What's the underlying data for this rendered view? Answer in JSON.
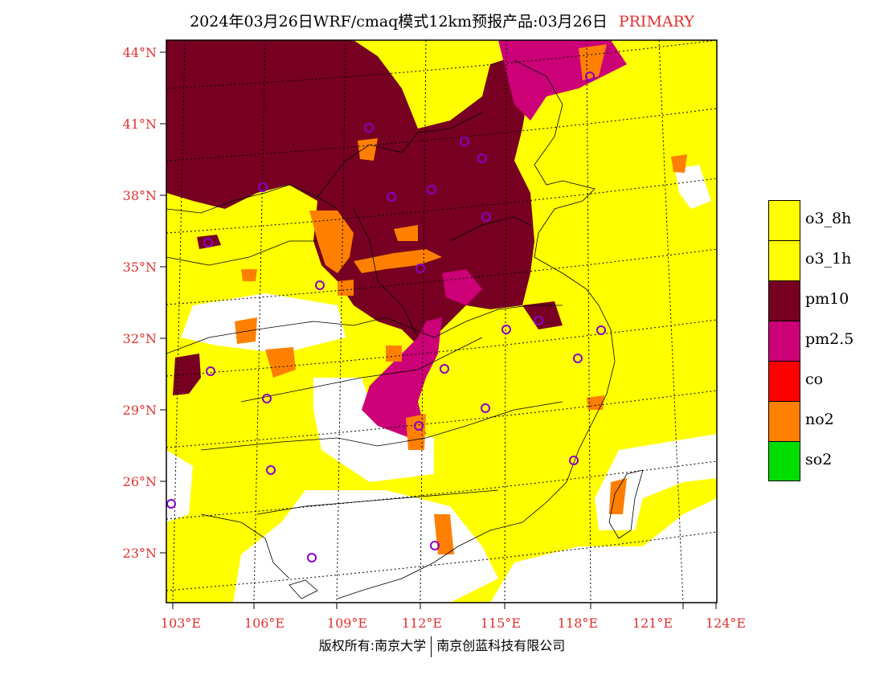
{
  "header": {
    "title": "2024年03月26日WRF/cmaq模式12km预报产品:03月26日",
    "tag": "PRIMARY"
  },
  "axes": {
    "lat_labels": [
      "44°N",
      "41°N",
      "38°N",
      "35°N",
      "32°N",
      "29°N",
      "26°N",
      "23°N"
    ],
    "lon_labels": [
      "103°E",
      "106°E",
      "109°E",
      "112°E",
      "115°E",
      "118°E",
      "121°E",
      "124°E"
    ]
  },
  "legend": {
    "items": [
      {
        "label": "o3_8h",
        "color": "#ffff00"
      },
      {
        "label": "o3_1h",
        "color": "#ffff00"
      },
      {
        "label": "pm10",
        "color": "#770022"
      },
      {
        "label": "pm2.5",
        "color": "#cc0077"
      },
      {
        "label": "co",
        "color": "#ff0000"
      },
      {
        "label": "no2",
        "color": "#ff8000"
      },
      {
        "label": "so2",
        "color": "#00dd00"
      }
    ]
  },
  "footer": {
    "left": "版权所有:南京大学",
    "right": "南京创蓝科技有限公司"
  },
  "colors": {
    "o3": "#ffff00",
    "pm10": "#770022",
    "pm25": "#cc0077",
    "no2": "#ff8000",
    "label_red": "#e03030",
    "city_marker": "#8800cc"
  }
}
